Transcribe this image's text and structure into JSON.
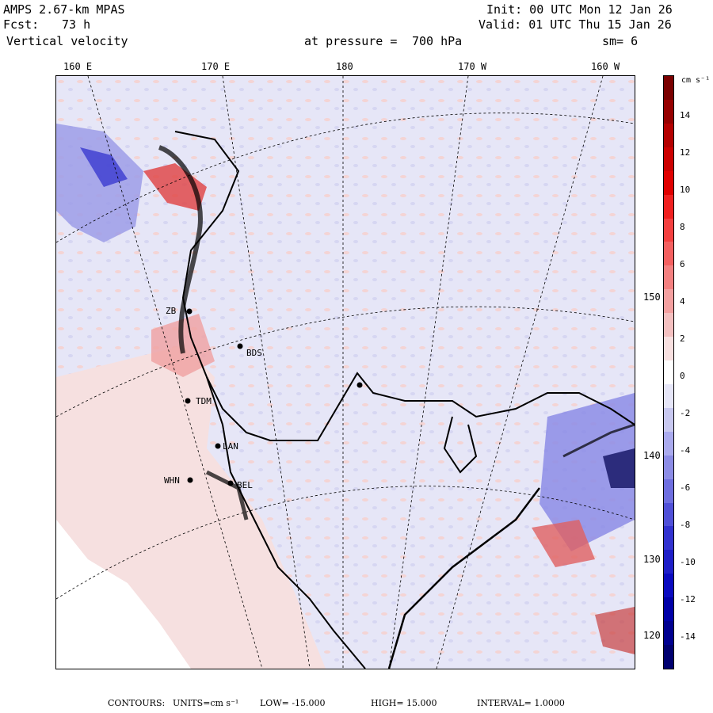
{
  "header": {
    "model": "AMPS 2.67-km MPAS",
    "forecast_label": "Fcst:",
    "forecast_hours": "73 h",
    "field": "Vertical velocity",
    "init": "Init: 00 UTC Mon 12 Jan 26",
    "valid": "Valid: 01 UTC Thu 15 Jan 26",
    "level_label": "at pressure =",
    "level": "700 hPa",
    "smoothing": "sm= 6"
  },
  "map": {
    "longitude_labels": [
      "160 E",
      "170 E",
      "180",
      "170 W",
      "160 W"
    ],
    "latitude_labels": [
      "150 W",
      "140 W",
      "130 W",
      "120 W"
    ],
    "stations": [
      "ZB",
      "BDS",
      "TDM",
      "LAN",
      "WHN",
      "BEL"
    ],
    "colors": {
      "background_land": "#f6e0e0",
      "ocean_field": "#e8e8f8",
      "coast": "#000000",
      "grid": "#000000"
    }
  },
  "colorbar": {
    "unit": "cm s⁻¹",
    "tick_labels": [
      "14",
      "12",
      "10",
      "8",
      "6",
      "4",
      "2",
      "0",
      "-2",
      "-4",
      "-6",
      "-8",
      "-10",
      "-12",
      "-14"
    ],
    "colors": [
      "#7a0000",
      "#960000",
      "#b40000",
      "#cc0000",
      "#e00000",
      "#f02020",
      "#f44040",
      "#f46060",
      "#f48080",
      "#f4a0a0",
      "#f4c0c0",
      "#f8e0e0",
      "#ffffff",
      "#e6e6f8",
      "#c8c8f0",
      "#aaaaee",
      "#8c8ce6",
      "#6e6ee0",
      "#5050d8",
      "#3232d0",
      "#1e1ec8",
      "#0a0ac0",
      "#0000a8",
      "#000090",
      "#000070"
    ]
  },
  "footer": {
    "contours_label": "CONTOURS:",
    "units_label": "UNITS=cm s⁻¹",
    "low": "LOW= -15.000",
    "high": "HIGH= 15.000",
    "interval": "INTERVAL= 1.0000"
  }
}
